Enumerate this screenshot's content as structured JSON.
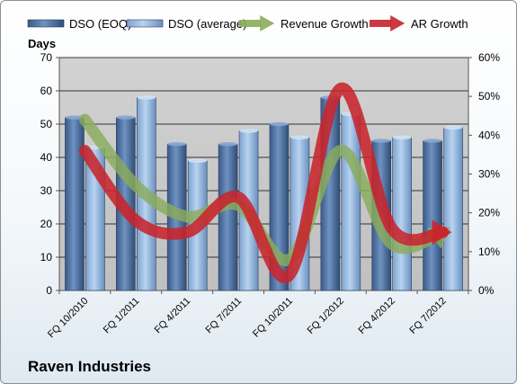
{
  "chart_data": {
    "type": "bar",
    "categories": [
      "FQ 10/2010",
      "FQ 1/2011",
      "FQ 4/2011",
      "FQ 7/2011",
      "FQ 10/2011",
      "FQ 1/2012",
      "FQ 4/2012",
      "FQ 7/2012"
    ],
    "series": [
      {
        "name": "DSO (EOQ)",
        "kind": "bar",
        "axis": "left",
        "color": "#4a6fa0",
        "values": [
          52,
          52,
          44,
          44,
          50,
          58,
          45,
          45
        ]
      },
      {
        "name": "DSO (average)",
        "kind": "bar",
        "axis": "left",
        "color": "#8fb3de",
        "values": [
          43,
          58,
          39,
          48,
          46,
          53,
          46,
          49
        ]
      },
      {
        "name": "Revenue Growth",
        "kind": "arrow-line",
        "axis": "right",
        "color": "#8aac5c",
        "values": [
          44,
          27,
          19,
          22,
          8,
          36,
          12,
          15
        ]
      },
      {
        "name": "AR Growth",
        "kind": "arrow-line",
        "axis": "right",
        "color": "#c8242c",
        "values": [
          36,
          18,
          15,
          24,
          4,
          52,
          16,
          15
        ]
      }
    ],
    "ylabel": "Days",
    "ylim": [
      0,
      70
    ],
    "yticks": [
      0,
      10,
      20,
      30,
      40,
      50,
      60,
      70
    ],
    "y2lim": [
      0,
      60
    ],
    "y2ticks": [
      "0%",
      "10%",
      "20%",
      "30%",
      "40%",
      "50%",
      "60%"
    ],
    "legend_position": "top",
    "grid": true,
    "plot_background": "#c0c0c0"
  },
  "company": "Raven Industries"
}
